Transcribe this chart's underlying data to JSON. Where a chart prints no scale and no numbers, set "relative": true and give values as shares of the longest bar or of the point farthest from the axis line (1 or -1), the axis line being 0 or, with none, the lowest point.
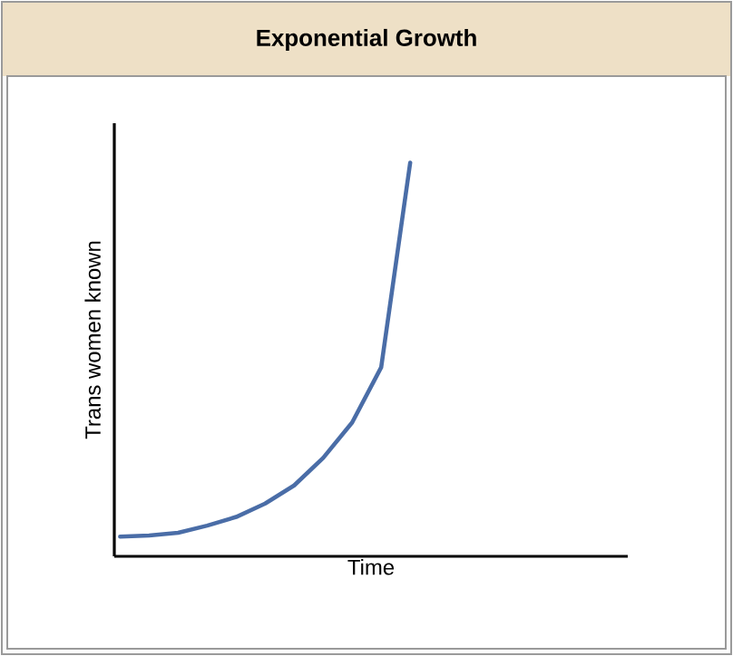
{
  "chart_data": {
    "type": "line",
    "title": "Exponential Growth",
    "xlabel": "Time",
    "ylabel": "Trans women known",
    "relative": true,
    "categories": [
      null,
      null,
      null,
      null,
      null,
      null,
      null,
      null,
      null,
      null,
      null,
      null,
      null,
      null,
      null,
      null,
      null,
      null
    ],
    "values": [
      0.05,
      0.053,
      0.06,
      0.078,
      0.1,
      0.134,
      0.18,
      0.25,
      0.34,
      0.48,
      1.0,
      null,
      null,
      null,
      null,
      null,
      null,
      null
    ],
    "color": "#4a6da7"
  }
}
